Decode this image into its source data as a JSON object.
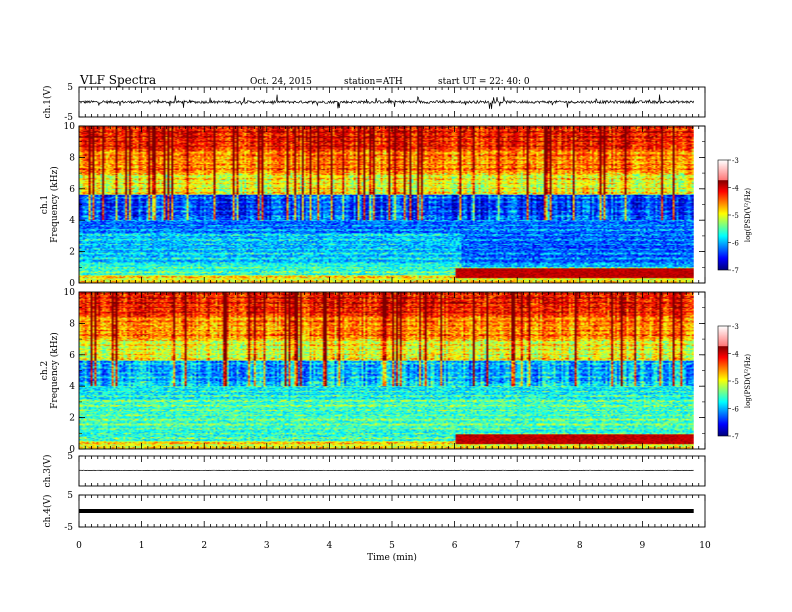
{
  "header": {
    "title": "VLF  Spectra",
    "date": "Oct. 24, 2015",
    "station": "station=ATH",
    "start": "start  UT  =   22: 40: 0"
  },
  "chart_data": [
    {
      "type": "line",
      "panel": "ch1-waveform",
      "ylabel": "ch.1(V)",
      "ylim": [
        -5,
        5
      ],
      "yticks": [
        "5",
        "-5"
      ],
      "xlim": [
        0,
        10
      ],
      "baseline": 0.0,
      "x_end": 9.82
    },
    {
      "type": "heatmap",
      "panel": "ch1-spectrogram",
      "ylabel_lines": [
        "ch.1",
        "Frequency  (kHz)"
      ],
      "ylim": [
        0,
        10
      ],
      "yticks": [
        "0",
        "2",
        "4",
        "6",
        "8",
        "10"
      ],
      "xlim": [
        0,
        10
      ],
      "x_end": 9.82,
      "colorbar": {
        "label": "log(PSD(V²/Hz)",
        "ticks": [
          "-3",
          "-4",
          "-5",
          "-6",
          "-7"
        ],
        "range": [
          -7,
          -3
        ]
      }
    },
    {
      "type": "heatmap",
      "panel": "ch2-spectrogram",
      "ylabel_lines": [
        "ch.2",
        "Frequency  (kHz)"
      ],
      "ylim": [
        0,
        10
      ],
      "yticks": [
        "0",
        "2",
        "4",
        "6",
        "8",
        "10"
      ],
      "xlim": [
        0,
        10
      ],
      "x_end": 9.82,
      "colorbar": {
        "label": "log(PSD(V²/Hz)",
        "ticks": [
          "-3",
          "-4",
          "-5",
          "-6",
          "-7"
        ],
        "range": [
          -7,
          -3
        ]
      }
    },
    {
      "type": "line",
      "panel": "ch3-waveform",
      "ylabel": "ch.3(V)",
      "ylim": [
        -5,
        5
      ],
      "yticks": [
        "5"
      ],
      "xlim": [
        0,
        10
      ],
      "baseline": 0.2,
      "x_end": 9.82
    },
    {
      "type": "line",
      "panel": "ch4-waveform",
      "ylabel": "ch.4(V)",
      "ylim": [
        -5,
        5
      ],
      "yticks": [
        "5",
        "-5"
      ],
      "xlim": [
        0,
        10
      ],
      "baseline": 0.0,
      "x_end": 9.82
    }
  ],
  "xaxis": {
    "label": "Time  (min)",
    "ticks": [
      "0",
      "1",
      "2",
      "3",
      "4",
      "5",
      "6",
      "7",
      "8",
      "9",
      "10"
    ]
  }
}
